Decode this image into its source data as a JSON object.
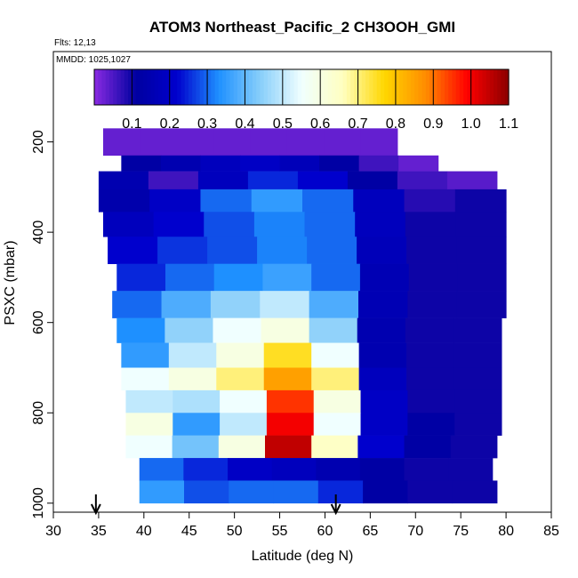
{
  "chart_data": {
    "type": "heatmap",
    "title": "ATOM3 Northeast_Pacific_2 CH3OOH_GMI",
    "flights": "Flts: 12,13",
    "dates": "MMDD: 1025,1027",
    "xlabel": "Latitude (deg N)",
    "ylabel": "PSXC (mbar)",
    "xlim": [
      30,
      85
    ],
    "ylim": [
      1020,
      0
    ],
    "xticks": [
      "30",
      "35",
      "40",
      "45",
      "50",
      "55",
      "60",
      "65",
      "70",
      "75",
      "80",
      "85"
    ],
    "yticks": [
      "200",
      "400",
      "600",
      "800",
      "1000"
    ],
    "colorbar": {
      "range": [
        0,
        1.1
      ],
      "ticks": [
        "0.1",
        "0.2",
        "0.3",
        "0.4",
        "0.5",
        "0.6",
        "0.7",
        "0.8",
        "0.9",
        "1.0",
        "1.1"
      ],
      "colors": [
        "#8a2be2",
        "#0000a0",
        "#0000cd",
        "#1e90ff",
        "#87cefa",
        "#f0ffff",
        "#ffffc0",
        "#ffd700",
        "#ff8c00",
        "#ff0000",
        "#8b0000"
      ]
    },
    "arrows_latitude": [
      34.7,
      61.2
    ],
    "grid": false,
    "layers": [
      {
        "p": [
          170,
          230
        ],
        "lat": [
          35.5,
          68
        ],
        "v": [
          0.03,
          0.03,
          0.03,
          0.03,
          0.03,
          0.03,
          0.03,
          0.03
        ]
      },
      {
        "p": [
          230,
          265
        ],
        "lat": [
          37.5,
          72.5
        ],
        "v": [
          0.12,
          0.15,
          0.18,
          0.2,
          0.17,
          0.12,
          0.06,
          0.03
        ]
      },
      {
        "p": [
          265,
          305
        ],
        "lat": [
          35.0,
          79.0
        ],
        "v": [
          0.15,
          0.06,
          0.18,
          0.25,
          0.22,
          0.12,
          0.06,
          0.04
        ]
      },
      {
        "p": [
          305,
          355
        ],
        "lat": [
          35.0,
          80.0
        ],
        "v": [
          0.14,
          0.2,
          0.3,
          0.35,
          0.3,
          0.18,
          0.08,
          0.1
        ]
      },
      {
        "p": [
          355,
          410
        ],
        "lat": [
          35.5,
          80.0
        ],
        "v": [
          0.18,
          0.22,
          0.28,
          0.32,
          0.3,
          0.18,
          0.1,
          0.1
        ]
      },
      {
        "p": [
          410,
          470
        ],
        "lat": [
          36.0,
          80.0
        ],
        "v": [
          0.22,
          0.26,
          0.28,
          0.32,
          0.3,
          0.17,
          0.1,
          0.1
        ]
      },
      {
        "p": [
          470,
          530
        ],
        "lat": [
          37.0,
          80.0
        ],
        "v": [
          0.25,
          0.3,
          0.33,
          0.36,
          0.3,
          0.16,
          0.1,
          0.1
        ]
      },
      {
        "p": [
          530,
          590
        ],
        "lat": [
          36.5,
          80.0
        ],
        "v": [
          0.3,
          0.38,
          0.45,
          0.5,
          0.38,
          0.16,
          0.1,
          0.1
        ]
      },
      {
        "p": [
          590,
          645
        ],
        "lat": [
          37.0,
          79.5
        ],
        "v": [
          0.33,
          0.45,
          0.55,
          0.6,
          0.45,
          0.15,
          0.1,
          0.1
        ]
      },
      {
        "p": [
          645,
          700
        ],
        "lat": [
          37.5,
          79.5
        ],
        "v": [
          0.35,
          0.5,
          0.6,
          0.75,
          0.55,
          0.15,
          0.1,
          0.1
        ]
      },
      {
        "p": [
          700,
          750
        ],
        "lat": [
          37.5,
          79.5
        ],
        "v": [
          0.55,
          0.6,
          0.7,
          0.85,
          0.7,
          0.18,
          0.1,
          0.1
        ]
      },
      {
        "p": [
          750,
          800
        ],
        "lat": [
          38.0,
          79.5
        ],
        "v": [
          0.5,
          0.48,
          0.55,
          0.95,
          0.6,
          0.2,
          0.1,
          0.1
        ]
      },
      {
        "p": [
          800,
          850
        ],
        "lat": [
          38.0,
          79.5
        ],
        "v": [
          0.6,
          0.35,
          0.5,
          1.0,
          0.55,
          0.2,
          0.12,
          0.1
        ]
      },
      {
        "p": [
          850,
          900
        ],
        "lat": [
          38.0,
          79.0
        ],
        "v": [
          0.55,
          0.42,
          0.6,
          1.05,
          0.65,
          0.22,
          0.12,
          0.1
        ]
      },
      {
        "p": [
          900,
          950
        ],
        "lat": [
          39.5,
          78.5
        ],
        "v": [
          0.3,
          0.25,
          0.2,
          0.18,
          0.15,
          0.12,
          0.1,
          0.1
        ]
      },
      {
        "p": [
          950,
          1000
        ],
        "lat": [
          39.5,
          79.0
        ],
        "v": [
          0.35,
          0.28,
          0.3,
          0.3,
          0.25,
          0.12,
          0.1,
          0.1
        ]
      }
    ]
  }
}
